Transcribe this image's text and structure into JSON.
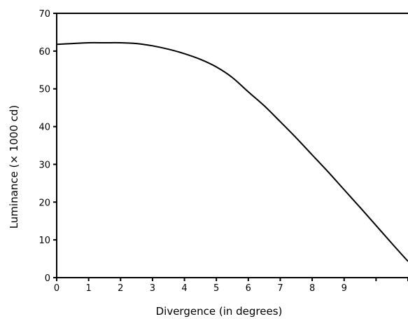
{
  "chart_data": {
    "type": "line",
    "title": "",
    "xlabel": "Divergence (in degrees)",
    "ylabel": "Luminance (× 1000 cd)",
    "xlim": [
      0,
      11
    ],
    "ylim": [
      0,
      70
    ],
    "x_ticks": [
      0,
      1,
      2,
      3,
      4,
      5,
      6,
      7,
      8,
      9
    ],
    "y_ticks": [
      0,
      10,
      20,
      30,
      40,
      50,
      60,
      70
    ],
    "grid": false,
    "legend": "none",
    "series": [
      {
        "x": [
          0,
          0.5,
          1,
          1.5,
          2,
          2.5,
          3,
          3.5,
          4,
          4.5,
          5,
          5.5,
          6,
          6.5,
          7,
          7.5,
          8,
          8.5,
          9,
          9.5,
          10,
          10.5,
          11
        ],
        "y": [
          61.8,
          62.0,
          62.2,
          62.2,
          62.2,
          62.0,
          61.4,
          60.5,
          59.3,
          57.8,
          55.8,
          53.0,
          49.2,
          45.5,
          41.3,
          37.0,
          32.5,
          28.0,
          23.3,
          18.6,
          13.8,
          9.0,
          4.3
        ]
      }
    ],
    "colors": {
      "line": "#000000",
      "axis": "#000000"
    }
  }
}
